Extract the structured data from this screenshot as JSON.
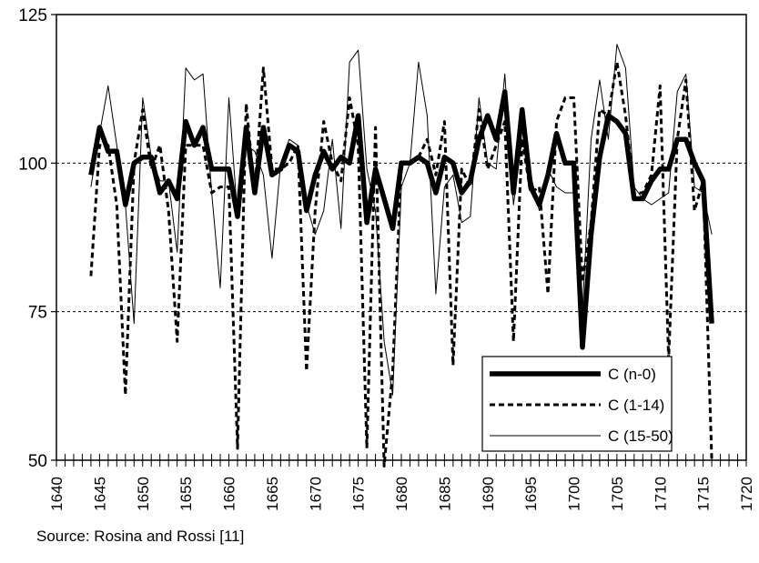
{
  "chart_data": {
    "type": "line",
    "xlim": [
      1640,
      1720
    ],
    "ylim": [
      50,
      125
    ],
    "x_ticks": [
      1640,
      1645,
      1650,
      1655,
      1660,
      1665,
      1670,
      1675,
      1680,
      1685,
      1690,
      1695,
      1700,
      1705,
      1710,
      1715,
      1720
    ],
    "y_ticks": [
      50,
      75,
      100,
      125
    ],
    "reference_lines": [
      75,
      100
    ],
    "legend_position": "bottom-right",
    "series": [
      {
        "name": "C (n-0)",
        "style": "thick-solid",
        "x": [
          1644,
          1645,
          1646,
          1647,
          1648,
          1649,
          1650,
          1651,
          1652,
          1653,
          1654,
          1655,
          1656,
          1657,
          1658,
          1659,
          1660,
          1661,
          1662,
          1663,
          1664,
          1665,
          1666,
          1667,
          1668,
          1669,
          1670,
          1671,
          1672,
          1673,
          1674,
          1675,
          1676,
          1677,
          1678,
          1679,
          1680,
          1681,
          1682,
          1683,
          1684,
          1685,
          1686,
          1687,
          1688,
          1689,
          1690,
          1691,
          1692,
          1693,
          1694,
          1695,
          1696,
          1697,
          1698,
          1699,
          1700,
          1701,
          1702,
          1703,
          1704,
          1705,
          1706,
          1707,
          1708,
          1709,
          1710,
          1711,
          1712,
          1713,
          1714,
          1715,
          1716
        ],
        "values": [
          98,
          106,
          102,
          102,
          93,
          100,
          101,
          101,
          95,
          97,
          94,
          107,
          103,
          106,
          99,
          99,
          99,
          91,
          106,
          95,
          106,
          98,
          99,
          103,
          102,
          92,
          98,
          102,
          99,
          101,
          100,
          108,
          90,
          99,
          94,
          89,
          100,
          100,
          101,
          100,
          95,
          101,
          100,
          95,
          97,
          104,
          108,
          104,
          112,
          95,
          109,
          96,
          93,
          98,
          105,
          100,
          100,
          69,
          88,
          101,
          108,
          107,
          105,
          94,
          94,
          97,
          99,
          99,
          104,
          104,
          100,
          97,
          73
        ]
      },
      {
        "name": "C (1-14)",
        "style": "dashed",
        "x": [
          1644,
          1645,
          1646,
          1647,
          1648,
          1649,
          1650,
          1651,
          1652,
          1653,
          1654,
          1655,
          1656,
          1657,
          1658,
          1659,
          1660,
          1661,
          1662,
          1663,
          1664,
          1665,
          1666,
          1667,
          1668,
          1669,
          1670,
          1671,
          1672,
          1673,
          1674,
          1675,
          1676,
          1677,
          1678,
          1679,
          1680,
          1681,
          1682,
          1683,
          1684,
          1685,
          1686,
          1687,
          1688,
          1689,
          1690,
          1691,
          1692,
          1693,
          1694,
          1695,
          1696,
          1697,
          1698,
          1699,
          1700,
          1701,
          1702,
          1703,
          1704,
          1705,
          1706,
          1707,
          1708,
          1709,
          1710,
          1711,
          1712,
          1713,
          1714,
          1715,
          1716
        ],
        "values": [
          81,
          103,
          103,
          93,
          61,
          100,
          109,
          99,
          103,
          92,
          70,
          103,
          103,
          103,
          95,
          96,
          96,
          52,
          110,
          95,
          116,
          99,
          99,
          100,
          103,
          65,
          92,
          107,
          100,
          97,
          111,
          103,
          52,
          106,
          49,
          65,
          100,
          100,
          101,
          104,
          98,
          107,
          66,
          99,
          96,
          109,
          99,
          103,
          107,
          70,
          104,
          95,
          96,
          78,
          107,
          111,
          111,
          80,
          90,
          109,
          108,
          117,
          108,
          95,
          95,
          98,
          113,
          67,
          104,
          114,
          92,
          97,
          50
        ]
      },
      {
        "name": "C (15-50)",
        "style": "thin-solid",
        "x": [
          1644,
          1645,
          1646,
          1647,
          1648,
          1649,
          1650,
          1651,
          1652,
          1653,
          1654,
          1655,
          1656,
          1657,
          1658,
          1659,
          1660,
          1661,
          1662,
          1663,
          1664,
          1665,
          1666,
          1667,
          1668,
          1669,
          1670,
          1671,
          1672,
          1673,
          1674,
          1675,
          1676,
          1677,
          1678,
          1679,
          1680,
          1681,
          1682,
          1683,
          1684,
          1685,
          1686,
          1687,
          1688,
          1689,
          1690,
          1691,
          1692,
          1693,
          1694,
          1695,
          1696,
          1697,
          1698,
          1699,
          1700,
          1701,
          1702,
          1703,
          1704,
          1705,
          1706,
          1707,
          1708,
          1709,
          1710,
          1711,
          1712,
          1713,
          1714,
          1715,
          1716
        ],
        "values": [
          96,
          105,
          113,
          103,
          93,
          73,
          111,
          101,
          97,
          97,
          85,
          116,
          114,
          115,
          95,
          79,
          111,
          91,
          103,
          102,
          98,
          84,
          100,
          104,
          103,
          93,
          88,
          92,
          104,
          89,
          117,
          119,
          99,
          92,
          70,
          61,
          96,
          100,
          117,
          108,
          78,
          96,
          98,
          90,
          91,
          111,
          100,
          99,
          115,
          93,
          104,
          98,
          92,
          99,
          96,
          95,
          95,
          75,
          104,
          114,
          104,
          120,
          116,
          96,
          94,
          93,
          94,
          95,
          112,
          115,
          96,
          95,
          88
        ]
      }
    ]
  },
  "source_note": "Source: Rosina and Rossi [11]"
}
